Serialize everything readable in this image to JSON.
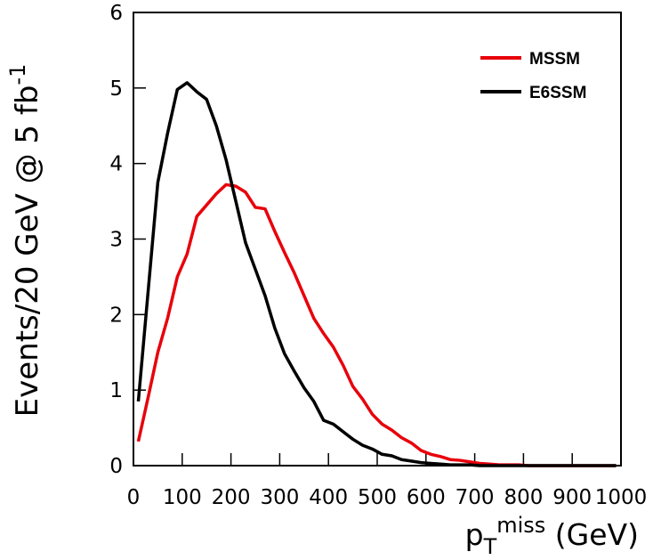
{
  "chart_data": {
    "type": "line",
    "y_label": {
      "text": "Events/20 GeV @ 5 fb",
      "sup": "-1"
    },
    "x_label": {
      "base": "p",
      "sub": "T",
      "sup": "miss",
      "unit": " (GeV)"
    },
    "x": [
      10,
      30,
      50,
      70,
      90,
      110,
      130,
      150,
      170,
      190,
      210,
      230,
      250,
      270,
      290,
      310,
      330,
      350,
      370,
      390,
      410,
      430,
      450,
      470,
      490,
      510,
      530,
      550,
      570,
      590,
      610,
      630,
      650,
      670,
      690,
      710,
      730,
      750,
      770,
      790,
      810,
      830,
      850,
      870,
      890,
      910,
      930,
      950,
      970,
      990
    ],
    "series": [
      {
        "name": "MSSM",
        "color": "#e8000b",
        "values": [
          0.32,
          0.9,
          1.5,
          1.95,
          2.5,
          2.8,
          3.3,
          3.45,
          3.6,
          3.72,
          3.7,
          3.62,
          3.42,
          3.4,
          3.1,
          2.82,
          2.55,
          2.25,
          1.95,
          1.75,
          1.57,
          1.33,
          1.05,
          0.88,
          0.68,
          0.55,
          0.47,
          0.37,
          0.3,
          0.2,
          0.15,
          0.12,
          0.08,
          0.07,
          0.05,
          0.03,
          0.02,
          0.01,
          0.01,
          0.01,
          0,
          0,
          0,
          0,
          0,
          0,
          0,
          0,
          0,
          0
        ]
      },
      {
        "name": "E6SSM",
        "color": "#000000",
        "values": [
          0.85,
          2.3,
          3.75,
          4.4,
          4.98,
          5.07,
          4.95,
          4.85,
          4.5,
          4.05,
          3.5,
          2.95,
          2.6,
          2.25,
          1.82,
          1.48,
          1.25,
          1.03,
          0.85,
          0.6,
          0.55,
          0.45,
          0.35,
          0.27,
          0.22,
          0.15,
          0.13,
          0.08,
          0.06,
          0.04,
          0.03,
          0.02,
          0.01,
          0.01,
          0.01,
          0,
          0,
          0,
          0,
          0,
          0,
          0,
          0,
          0,
          0,
          0,
          0,
          0,
          0,
          0
        ]
      }
    ],
    "xlim": [
      0,
      1000
    ],
    "xticks": [
      0,
      100,
      200,
      300,
      400,
      500,
      600,
      700,
      800,
      900,
      1000
    ],
    "ylim": [
      0,
      6
    ],
    "yticks": [
      0,
      1,
      2,
      3,
      4,
      5,
      6
    ],
    "legend": "upper right"
  }
}
